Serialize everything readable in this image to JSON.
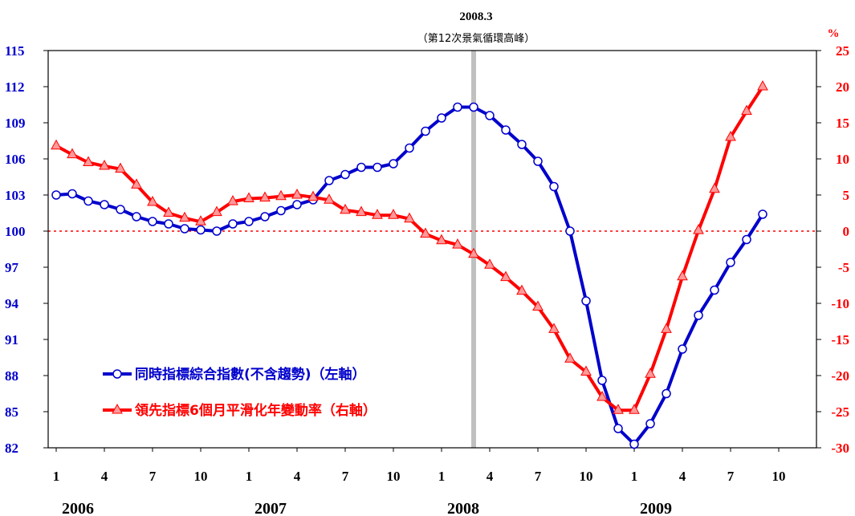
{
  "chart_data": {
    "type": "line",
    "x_tick_labels": [
      "1",
      "4",
      "7",
      "10",
      "1",
      "4",
      "7",
      "10",
      "1",
      "4",
      "7",
      "10",
      "1",
      "4",
      "7",
      "10"
    ],
    "year_labels": [
      "2006",
      "2007",
      "2008",
      "2009"
    ],
    "left_axis": {
      "ylim": [
        82,
        115
      ],
      "ticks": [
        "115",
        "112",
        "109",
        "106",
        "103",
        "100",
        "97",
        "94",
        "91",
        "88",
        "85",
        "82"
      ],
      "color": "#0000cc"
    },
    "right_axis": {
      "unit": "%",
      "ylim": [
        -30,
        25
      ],
      "ticks": [
        "25",
        "20",
        "15",
        "10",
        "5",
        "0",
        "-5",
        "-10",
        "-15",
        "-20",
        "-25",
        "-30"
      ],
      "color": "#ff0000"
    },
    "annotation": {
      "title": "2008.3",
      "subtitle": "（第12次景氣循環高峰）",
      "month_index": 26
    },
    "reference_line_right_value": 0,
    "series": [
      {
        "name": "同時指標綜合指數(不含趨勢)（左軸）",
        "axis": "left",
        "color": "#0000cc",
        "marker": "circle",
        "values": [
          103.0,
          103.1,
          102.5,
          102.2,
          101.8,
          101.2,
          100.8,
          100.6,
          100.2,
          100.1,
          100.0,
          100.6,
          100.8,
          101.2,
          101.7,
          102.2,
          102.6,
          104.2,
          104.7,
          105.3,
          105.3,
          105.6,
          106.9,
          108.3,
          109.4,
          110.3,
          110.3,
          109.6,
          108.4,
          107.2,
          105.8,
          103.7,
          100.0,
          94.2,
          87.6,
          83.6,
          82.3,
          84.0,
          86.5,
          90.2,
          93.0,
          95.1,
          97.4,
          99.3,
          101.4
        ]
      },
      {
        "name": "領先指標6個月平滑化年變動率（右軸）",
        "axis": "right",
        "color": "#ff0000",
        "marker": "triangle",
        "values": [
          11.8,
          10.6,
          9.5,
          9.0,
          8.6,
          6.4,
          4.0,
          2.5,
          1.8,
          1.3,
          2.6,
          4.1,
          4.5,
          4.6,
          4.8,
          5.0,
          4.7,
          4.3,
          2.9,
          2.6,
          2.2,
          2.2,
          1.7,
          -0.4,
          -1.3,
          -1.9,
          -3.2,
          -4.7,
          -6.4,
          -8.3,
          -10.5,
          -13.6,
          -17.7,
          -19.5,
          -23.0,
          -24.8,
          -24.8,
          -19.8,
          -13.6,
          -6.3,
          0.1,
          5.8,
          13.0,
          16.6,
          20.0
        ]
      }
    ]
  }
}
